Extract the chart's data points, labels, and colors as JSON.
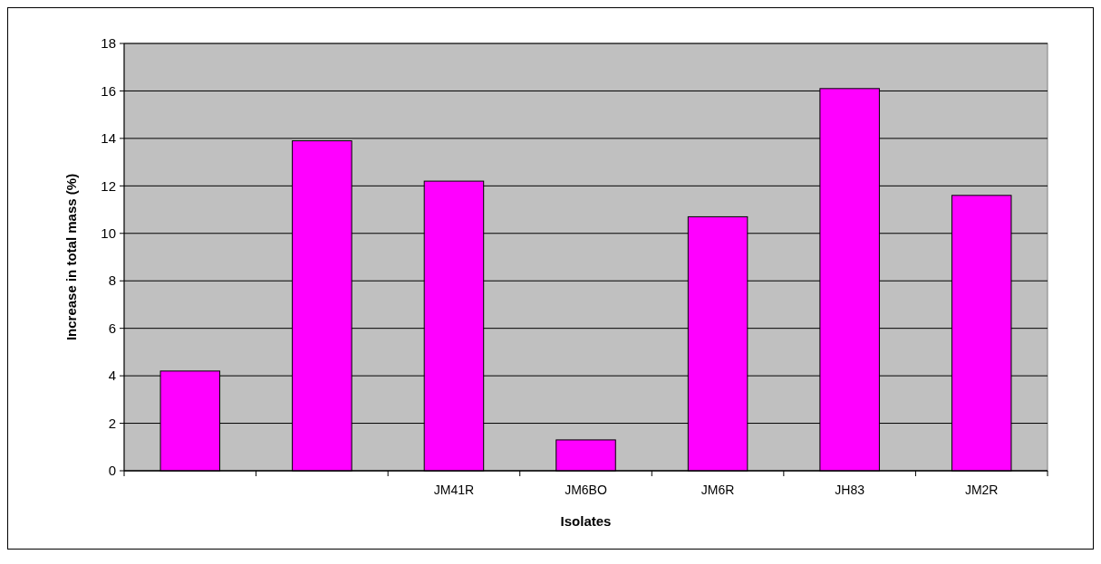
{
  "chart_data": {
    "type": "bar",
    "xlabel": "Isolates",
    "ylabel": "Increase in total mass (%)",
    "categories": [
      null,
      null,
      "JM41R",
      "JM6BO",
      "JM6R",
      "JH83",
      "JM2R"
    ],
    "values": [
      4.2,
      13.9,
      12.2,
      1.3,
      10.7,
      16.1,
      11.6
    ],
    "color": "#ff00ff",
    "ylim": [
      0,
      18
    ],
    "yticks": [
      0,
      2,
      4,
      6,
      8,
      10,
      12,
      14,
      16,
      18
    ],
    "grid": "y"
  }
}
